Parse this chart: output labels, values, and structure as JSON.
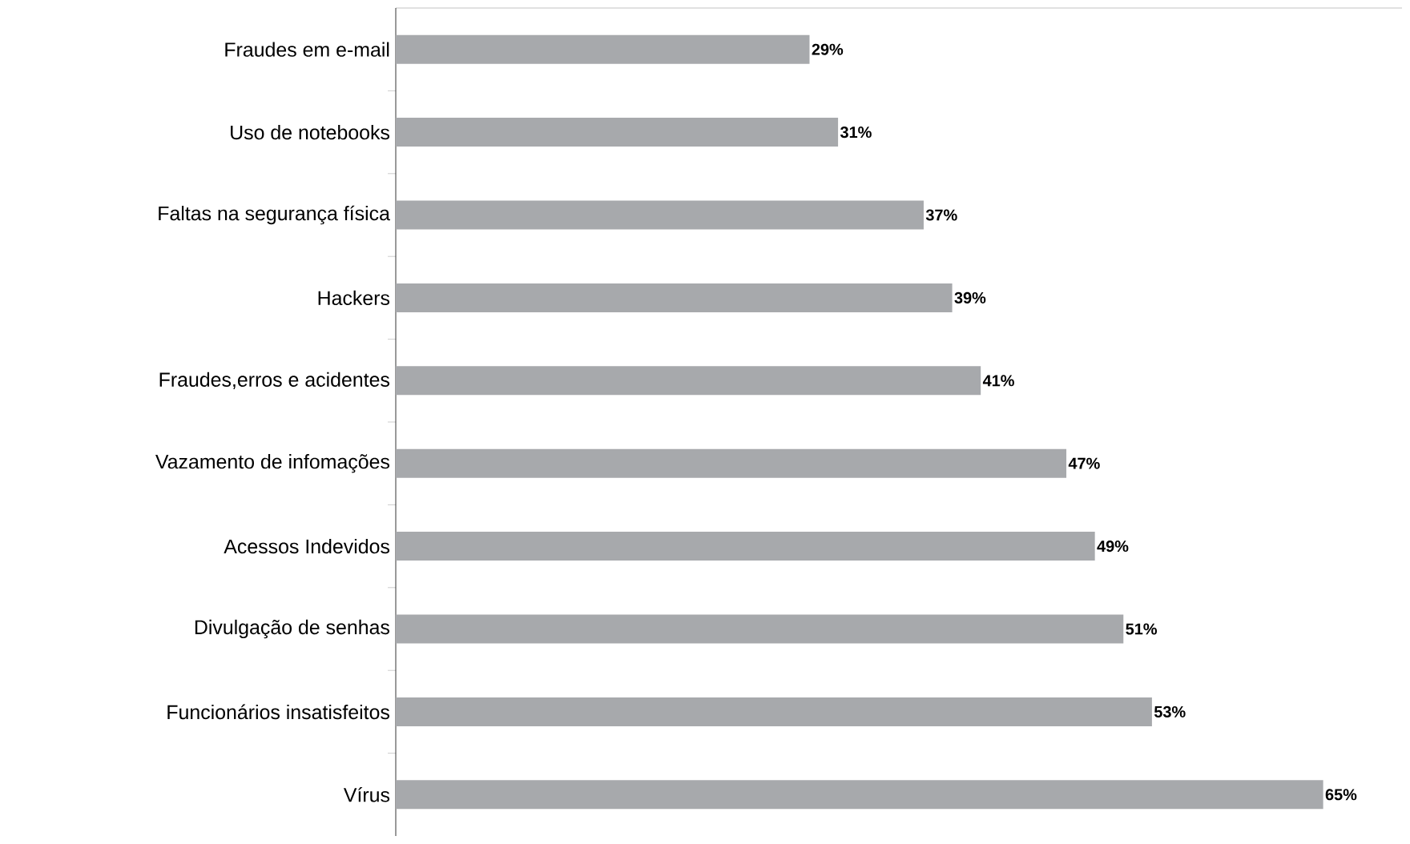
{
  "chart_data": {
    "type": "bar",
    "orientation": "horizontal",
    "categories": [
      "Fraudes em e-mail",
      "Uso de notebooks",
      "Faltas na segurança física",
      "Hackers",
      "Fraudes,erros e acidentes",
      "Vazamento de infomações",
      "Acessos Indevidos",
      "Divulgação de senhas",
      "Funcionários insatisfeitos",
      "Vírus"
    ],
    "values": [
      29,
      31,
      37,
      39,
      41,
      47,
      49,
      51,
      53,
      65
    ],
    "value_labels": [
      "29%",
      "31%",
      "37%",
      "39%",
      "41%",
      "47%",
      "49%",
      "51%",
      "53%",
      "65%"
    ],
    "color": "#a7a9ac"
  }
}
